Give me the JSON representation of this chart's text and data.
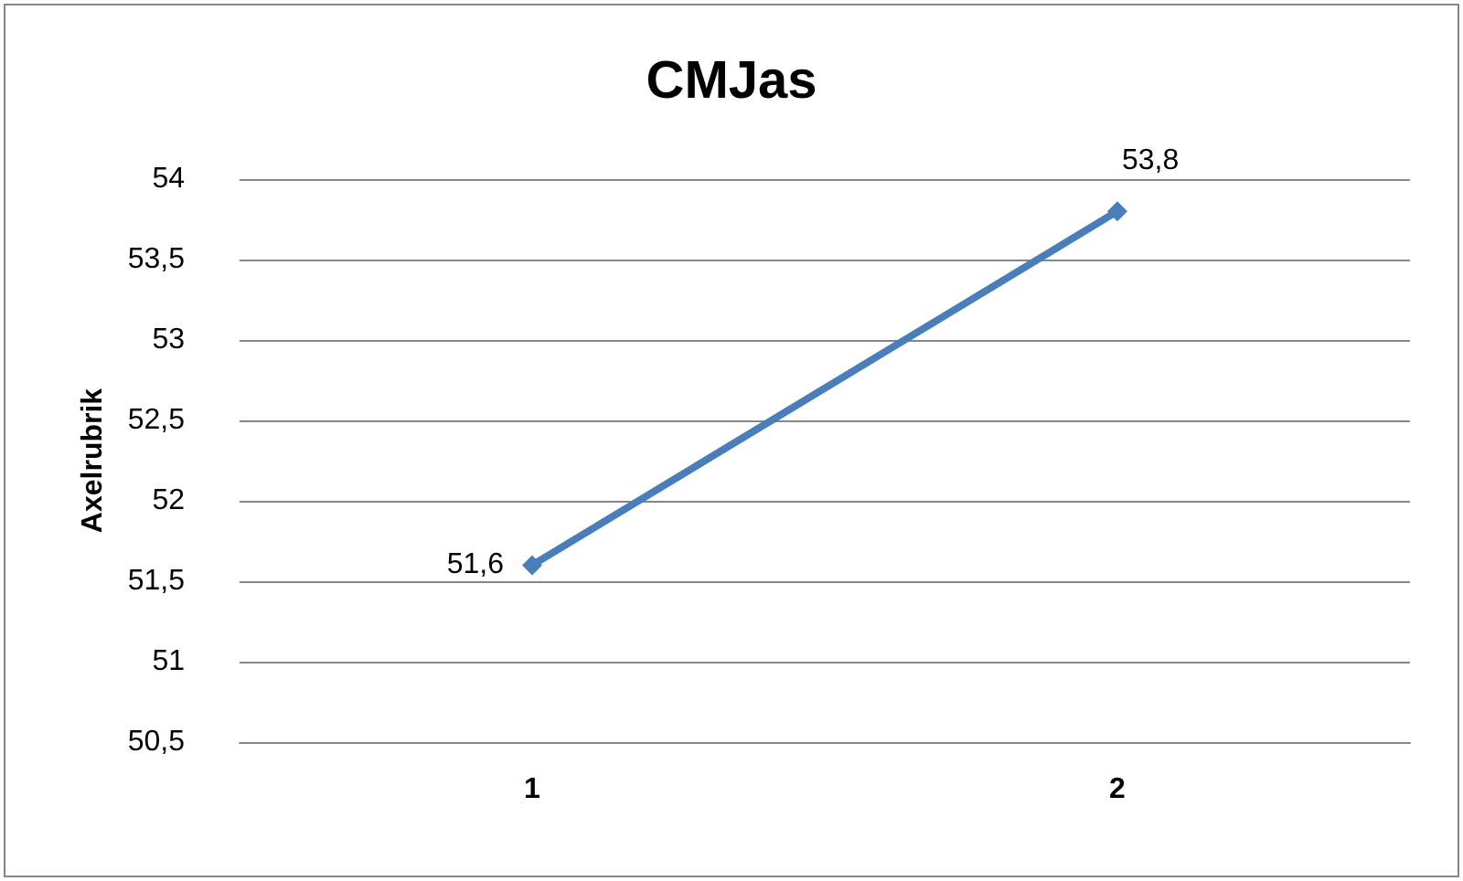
{
  "chart_data": {
    "type": "line",
    "title": "CMJas",
    "ylabel": "Axelrubrik",
    "categories": [
      "1",
      "2"
    ],
    "series": [
      {
        "color": "#4a7ebb",
        "values": [
          51.6,
          53.8
        ],
        "value_labels": [
          "51,6",
          "53,8"
        ]
      }
    ],
    "ylim": [
      50.5,
      54
    ],
    "yticks": [
      {
        "value": 50.5,
        "label": "50,5"
      },
      {
        "value": 51,
        "label": "51"
      },
      {
        "value": 51.5,
        "label": "51,5"
      },
      {
        "value": 52,
        "label": "52"
      },
      {
        "value": 52.5,
        "label": "52,5"
      },
      {
        "value": 53,
        "label": "53"
      },
      {
        "value": 53.5,
        "label": "53,5"
      },
      {
        "value": 54,
        "label": "54"
      }
    ],
    "grid": "y",
    "marker": "diamond",
    "line_style": "solid"
  }
}
